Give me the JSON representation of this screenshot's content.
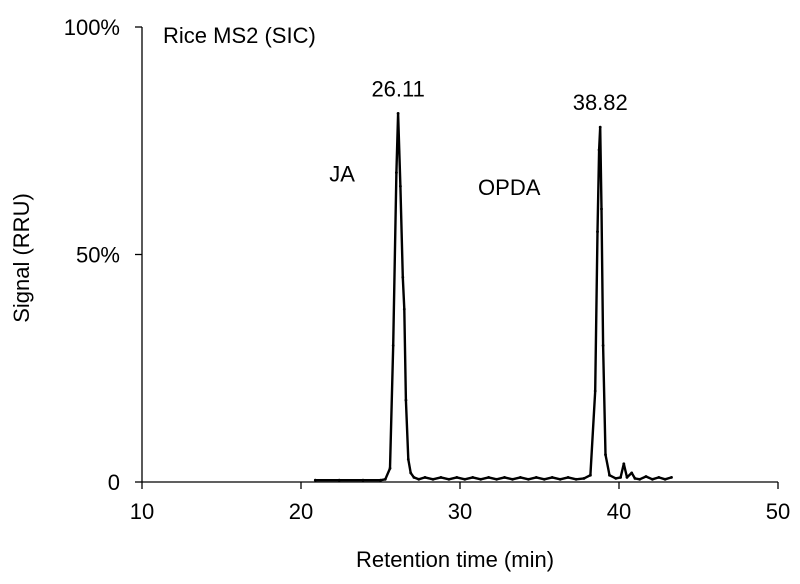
{
  "chart_data": {
    "type": "line",
    "title": "Rice MS2 (SIC)",
    "xlabel": "Retention time (min)",
    "ylabel": "Signal (RRU)",
    "xlim": [
      10,
      50
    ],
    "ylim": [
      0,
      100
    ],
    "x_ticks": [
      10,
      20,
      30,
      40,
      50
    ],
    "x_tick_labels": [
      "10",
      "20",
      "30",
      "40",
      "50"
    ],
    "y_ticks": [
      0,
      50,
      100
    ],
    "y_tick_labels": [
      "0",
      "50%",
      "100%"
    ],
    "grid": false,
    "legend": "none",
    "line_color": "#000000",
    "series": [
      {
        "x": [
          20.9,
          22.4,
          23.9,
          25.0,
          25.3,
          25.6,
          25.8,
          26.0,
          26.11,
          26.25,
          26.4,
          26.5,
          26.6,
          26.75,
          26.9,
          27.1,
          27.4,
          27.8,
          28.3,
          28.8,
          29.3,
          29.8,
          30.3,
          30.8,
          31.3,
          31.8,
          32.3,
          32.8,
          33.3,
          33.8,
          34.3,
          34.8,
          35.3,
          35.8,
          36.3,
          36.8,
          37.3,
          37.8,
          38.2,
          38.5,
          38.65,
          38.75,
          38.82,
          38.9,
          39.0,
          39.15,
          39.4,
          39.8,
          40.1,
          40.3,
          40.5,
          40.8,
          41.0,
          41.3,
          41.7,
          42.1,
          42.5,
          42.9,
          43.3
        ],
        "y": [
          0.4,
          0.4,
          0.4,
          0.4,
          0.6,
          3.0,
          30.0,
          68.0,
          81.0,
          65.0,
          45.0,
          38.0,
          18.0,
          5.0,
          2.0,
          1.0,
          0.6,
          1.0,
          0.6,
          1.0,
          0.6,
          1.0,
          0.6,
          1.0,
          0.6,
          1.0,
          0.6,
          1.0,
          0.6,
          1.0,
          0.6,
          1.0,
          0.6,
          1.0,
          0.6,
          1.0,
          0.6,
          0.8,
          1.5,
          20.0,
          55.0,
          73.0,
          78.0,
          60.0,
          30.0,
          6.0,
          1.5,
          0.8,
          1.0,
          4.0,
          1.0,
          2.0,
          0.8,
          0.6,
          1.2,
          0.6,
          1.0,
          0.6,
          1.0
        ]
      }
    ],
    "annotations": [
      {
        "text": "26.11",
        "x": 26.11,
        "y": 81.0,
        "kind": "peak"
      },
      {
        "text": "38.82",
        "x": 38.82,
        "y": 78.0,
        "kind": "peak"
      },
      {
        "text": "JA",
        "x": 26.11,
        "y": 81.0,
        "kind": "compound"
      },
      {
        "text": "OPDA",
        "x": 38.82,
        "y": 78.0,
        "kind": "compound"
      }
    ]
  }
}
